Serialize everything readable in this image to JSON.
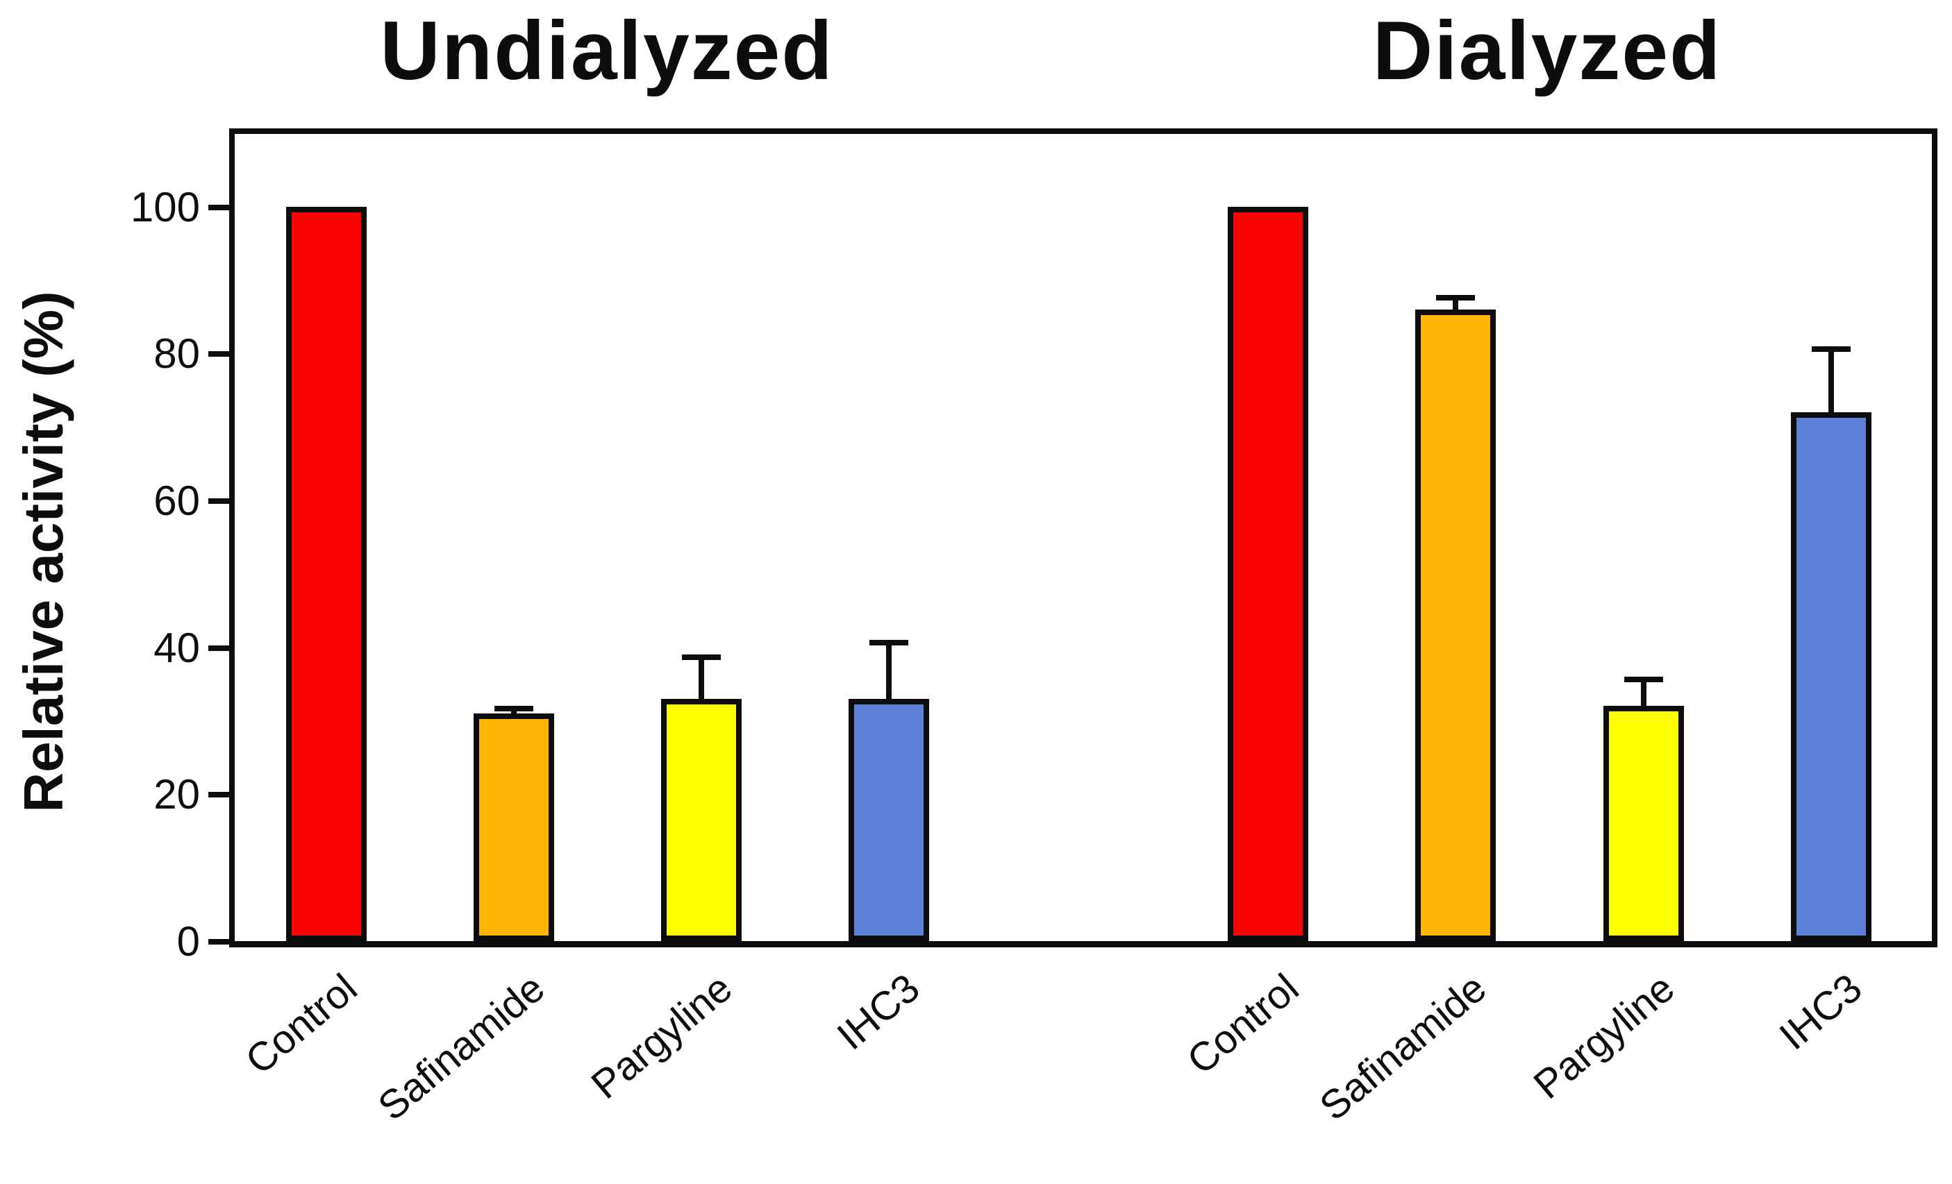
{
  "figure": {
    "background": "#ffffff",
    "ink": "#0d0d0d"
  },
  "chart_data": {
    "type": "bar",
    "title": "",
    "ylabel": "Relative activity (%)",
    "xlabel": "",
    "ylim": [
      0,
      110
    ],
    "yticks": [
      0,
      20,
      40,
      60,
      80,
      100
    ],
    "grid": false,
    "legend": "none",
    "error_bars": "upper only",
    "categories": [
      "Control",
      "Safinamide",
      "Pargyline",
      "IHC3"
    ],
    "bar_colors": {
      "Control": "#f90400",
      "Safinamide": "#fcb505",
      "Pargyline": "#fdfe00",
      "IHC3": "#5d80d8"
    },
    "groups": [
      {
        "title": "Undialyzed",
        "bars": [
          {
            "category": "Control",
            "value": 100,
            "error": 0,
            "color": "#f90400"
          },
          {
            "category": "Safinamide",
            "value": 31,
            "error": 1,
            "color": "#fcb505"
          },
          {
            "category": "Pargyline",
            "value": 33,
            "error": 6,
            "color": "#fdfe00"
          },
          {
            "category": "IHC3",
            "value": 33,
            "error": 8,
            "color": "#5d80d8"
          }
        ]
      },
      {
        "title": "Dialyzed",
        "bars": [
          {
            "category": "Control",
            "value": 100,
            "error": 0,
            "color": "#f90400"
          },
          {
            "category": "Safinamide",
            "value": 86,
            "error": 2,
            "color": "#fcb505"
          },
          {
            "category": "Pargyline",
            "value": 32,
            "error": 4,
            "color": "#fdfe00"
          },
          {
            "category": "IHC3",
            "value": 72,
            "error": 9,
            "color": "#5d80d8"
          }
        ]
      }
    ]
  }
}
